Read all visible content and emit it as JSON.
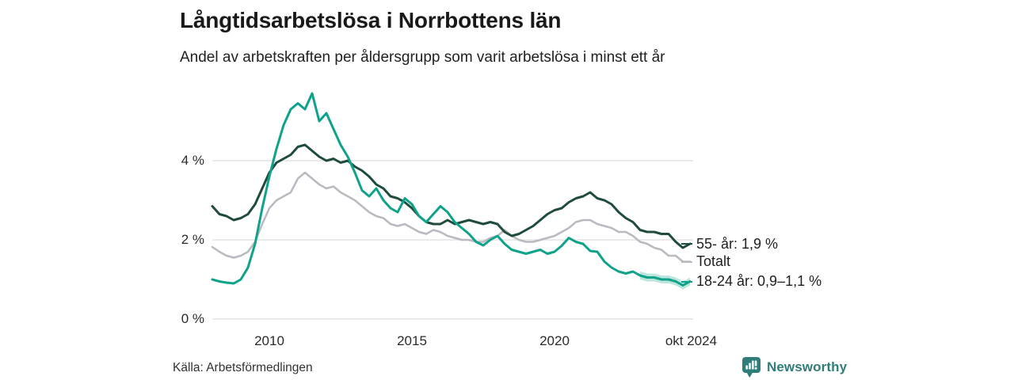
{
  "title": "Långtidsarbetslösa i Norrbottens län",
  "subtitle": "Andel av arbetskraften per åldersgrupp som varit arbetslösa i minst ett år",
  "source": "Källa: Arbetsförmedlingen",
  "branding": {
    "name": "Newsworthy",
    "color": "#2e7d78"
  },
  "colors": {
    "grid": "#e3e3e3",
    "text_dark": "#191919",
    "text_tick": "#2b2b2b",
    "band_teal": "#0fa28a"
  },
  "chart_data": {
    "type": "line",
    "title": "Långtidsarbetslösa i Norrbottens län",
    "subtitle": "Andel av arbetskraften per åldersgrupp som varit arbetslösa i minst ett år",
    "unit": "% av arbetskraften",
    "x_start": 2008.0,
    "x_step": 0.25,
    "x_range": [
      2008.0,
      2024.79
    ],
    "ylim": [
      0,
      6
    ],
    "grid": true,
    "legend_position": "right-end-labels",
    "y_ticks": [
      {
        "label": "4 %",
        "value": 4
      },
      {
        "label": "2 %",
        "value": 2
      },
      {
        "label": "0 %",
        "value": 0
      }
    ],
    "x_ticks": [
      {
        "label": "2010",
        "t": 2010
      },
      {
        "label": "2015",
        "t": 2015
      },
      {
        "label": "2020",
        "t": 2020
      },
      {
        "label": "okt 2024",
        "t": 2024.79
      }
    ],
    "series": [
      {
        "name": "Totalt",
        "label": "Totalt",
        "color": "#b9b9c1",
        "stroke_width": 2.5,
        "values": [
          1.82,
          1.7,
          1.6,
          1.55,
          1.6,
          1.7,
          1.95,
          2.4,
          2.8,
          3.0,
          3.1,
          3.2,
          3.55,
          3.7,
          3.55,
          3.4,
          3.3,
          3.35,
          3.2,
          3.1,
          3.0,
          2.85,
          2.7,
          2.6,
          2.55,
          2.4,
          2.35,
          2.4,
          2.3,
          2.2,
          2.15,
          2.25,
          2.2,
          2.1,
          2.05,
          2.0,
          2.0,
          1.95,
          1.95,
          2.05,
          2.1,
          2.25,
          2.1,
          2.0,
          1.95,
          1.95,
          2.0,
          2.05,
          2.1,
          2.2,
          2.3,
          2.45,
          2.5,
          2.5,
          2.4,
          2.35,
          2.3,
          2.2,
          2.2,
          2.1,
          1.95,
          1.9,
          1.8,
          1.75,
          1.6,
          1.6,
          1.45,
          1.45
        ]
      },
      {
        "name": "55- år",
        "label": "55- år: 1,9 %",
        "color": "#1f4b3d",
        "stroke_width": 3,
        "values": [
          2.85,
          2.65,
          2.6,
          2.5,
          2.55,
          2.65,
          2.9,
          3.3,
          3.7,
          3.95,
          4.05,
          4.15,
          4.35,
          4.4,
          4.25,
          4.1,
          4.0,
          4.05,
          3.95,
          4.0,
          3.85,
          3.75,
          3.6,
          3.4,
          3.3,
          3.1,
          3.05,
          2.95,
          2.8,
          2.6,
          2.45,
          2.4,
          2.4,
          2.5,
          2.4,
          2.45,
          2.5,
          2.45,
          2.4,
          2.45,
          2.4,
          2.2,
          2.1,
          2.15,
          2.25,
          2.35,
          2.5,
          2.65,
          2.75,
          2.8,
          2.95,
          3.05,
          3.1,
          3.2,
          3.05,
          3.0,
          2.9,
          2.7,
          2.55,
          2.45,
          2.25,
          2.2,
          2.2,
          2.15,
          2.15,
          1.95,
          1.8,
          1.9
        ]
      },
      {
        "name": "18-24 år",
        "label": "18-24 år: 0,9–1,1 %",
        "color": "#0fa28a",
        "stroke_width": 3,
        "band_from": 2023.0,
        "band_halfwidth": 0.1,
        "values": [
          1.0,
          0.95,
          0.92,
          0.9,
          1.0,
          1.3,
          1.9,
          2.8,
          3.6,
          4.3,
          4.9,
          5.3,
          5.45,
          5.3,
          5.7,
          5.0,
          5.2,
          4.8,
          4.4,
          4.1,
          3.7,
          3.25,
          3.1,
          3.3,
          3.0,
          2.8,
          2.7,
          3.05,
          2.9,
          2.6,
          2.45,
          2.65,
          2.85,
          2.7,
          2.45,
          2.3,
          2.15,
          1.95,
          1.86,
          2.0,
          2.1,
          1.9,
          1.75,
          1.7,
          1.65,
          1.7,
          1.75,
          1.65,
          1.7,
          1.85,
          2.05,
          1.95,
          1.9,
          1.72,
          1.7,
          1.45,
          1.3,
          1.2,
          1.15,
          1.2,
          1.1,
          1.05,
          1.05,
          1.0,
          1.0,
          0.95,
          0.85,
          0.95
        ]
      }
    ],
    "legend_order": [
      1,
      0,
      2
    ]
  }
}
